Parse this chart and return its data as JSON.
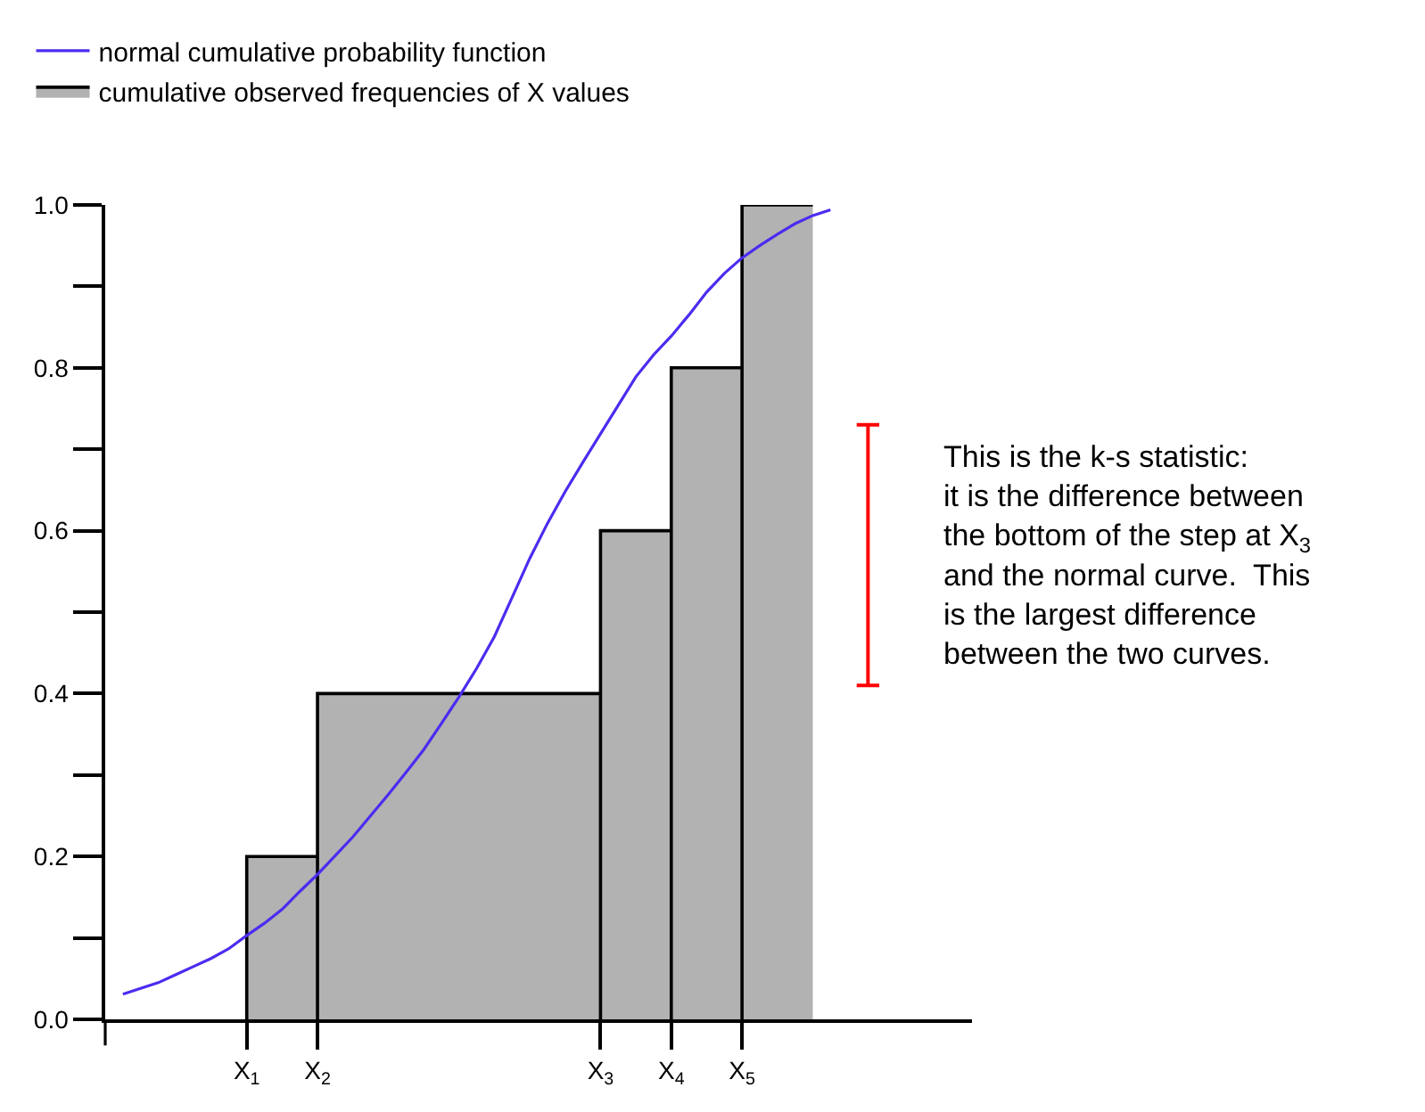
{
  "chart_data": {
    "type": "line",
    "categories": [
      null,
      null,
      null,
      null,
      null,
      null,
      null,
      null,
      "X$_{1}$",
      null,
      null,
      null,
      "X$_{2}$",
      null,
      null,
      null,
      null,
      null,
      null,
      null,
      null,
      null,
      null,
      null,
      null,
      null,
      null,
      null,
      "X$_{3}$",
      null,
      null,
      null,
      "X$_{4}$",
      null,
      null,
      null,
      "X$_{5}$",
      null,
      null,
      null,
      null,
      null,
      null,
      null,
      null,
      null,
      null,
      null,
      null,
      null
    ],
    "series": [
      {
        "name": "normal cumulative probability function",
        "color": "#4b2cf0",
        "values": [
          null,
          0.031,
          0.038,
          0.045,
          0.055,
          0.065,
          0.075,
          0.087,
          0.103,
          0.118,
          0.135,
          0.157,
          0.178,
          0.201,
          0.224,
          0.25,
          0.276,
          0.303,
          0.331,
          0.363,
          0.396,
          0.431,
          0.47,
          0.518,
          0.566,
          0.609,
          0.648,
          0.684,
          0.719,
          0.754,
          0.789,
          0.816,
          0.839,
          0.865,
          0.893,
          0.916,
          0.935,
          0.95,
          0.964,
          0.977,
          0.987,
          0.994,
          null,
          null,
          null,
          null,
          null,
          null,
          null,
          null
        ]
      },
      {
        "name": "cumulative observed frequencies of X values",
        "type": "area",
        "color": "#000000",
        "values": [
          null,
          null,
          null,
          null,
          null,
          null,
          null,
          null,
          0.2,
          0.2,
          0.2,
          0.2,
          0.4,
          0.4,
          0.4,
          0.4,
          0.4,
          0.4,
          0.4,
          0.4,
          0.4,
          0.4,
          0.4,
          0.4,
          0.4,
          0.4,
          0.4,
          0.4,
          0.6,
          0.6,
          0.6,
          0.6,
          0.8,
          0.8,
          0.8,
          0.8,
          1.0,
          1.0,
          1.0,
          1.0,
          1.0,
          null,
          null,
          null,
          null,
          null,
          null,
          null,
          null,
          null
        ]
      }
    ],
    "ylim": [
      0,
      1
    ],
    "yticks": [
      {
        "value": 0,
        "label": "0.0"
      },
      {
        "value": 0.1,
        "label": null
      },
      {
        "value": 0.2,
        "label": "0.2"
      },
      {
        "value": 0.3,
        "label": null
      },
      {
        "value": 0.4,
        "label": "0.4"
      },
      {
        "value": 0.5,
        "label": null
      },
      {
        "value": 0.6,
        "label": "0.6"
      },
      {
        "value": 0.7,
        "label": null
      },
      {
        "value": 0.8,
        "label": "0.8"
      },
      {
        "value": 0.9,
        "label": null
      },
      {
        "value": 1.0,
        "label": "1.0"
      }
    ],
    "annotations": [
      "This is the k-s statistic:\nit is the difference between\nthe bottom of the step at X$_{3}$\nand the normal curve.  This\nis the largest difference\nbetween the two curves."
    ],
    "grid": false,
    "legend": "top left"
  }
}
